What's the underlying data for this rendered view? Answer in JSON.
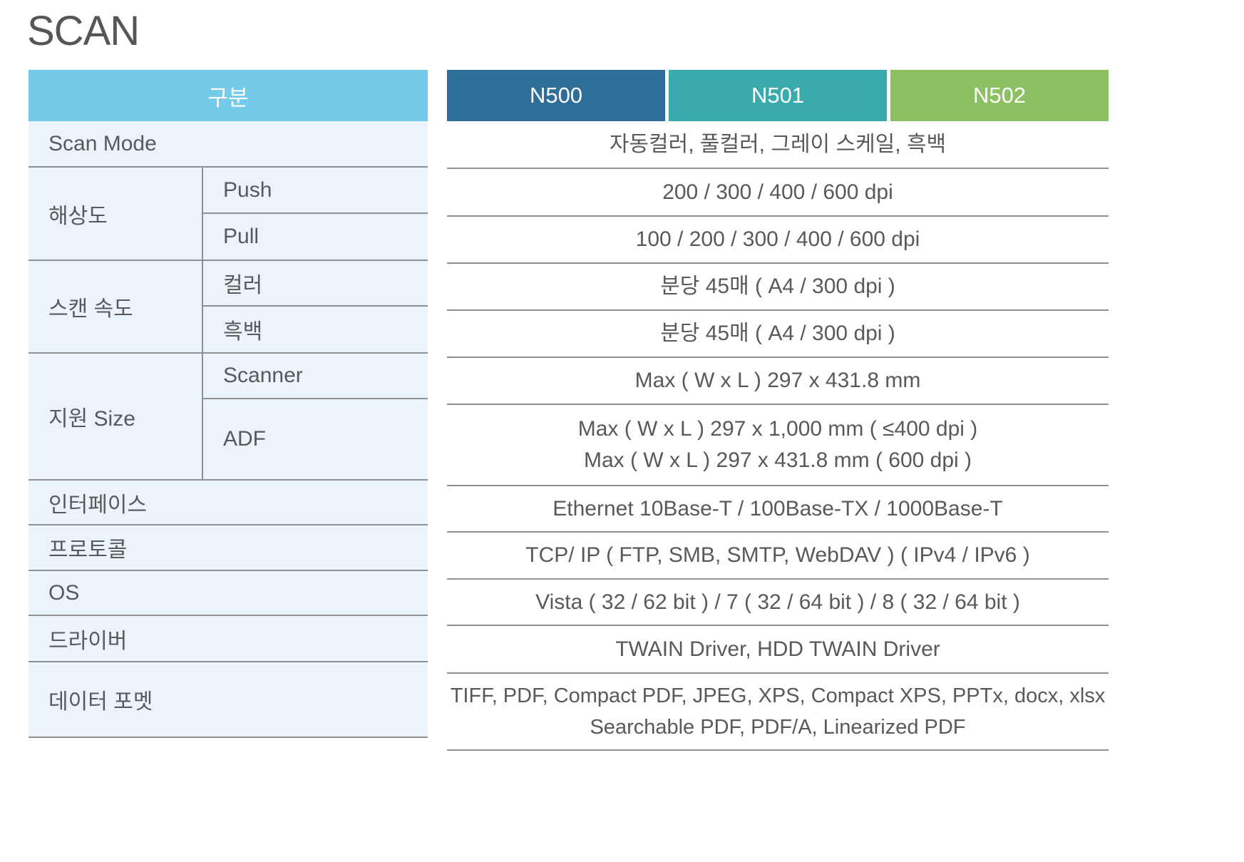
{
  "title": "SCAN",
  "colors": {
    "category_header_bg": "#73CAE9",
    "category_body_bg": "#EAF4FA",
    "n500_bg": "#2E6E99",
    "n501_bg": "#3BAAAD",
    "n502_bg": "#8CC163",
    "text": "#58595B",
    "line": "#8F9091"
  },
  "spec_table": {
    "corner_header": "구분",
    "model_headers": [
      "N500",
      "N501",
      "N502"
    ],
    "rows": [
      {
        "category": "Scan Mode",
        "value": "자동컬러, 풀컬러, 그레이 스케일, 흑백"
      },
      {
        "category": "해상도",
        "sub": "Push",
        "value": "200 / 300 / 400 / 600 dpi"
      },
      {
        "category": "해상도",
        "sub": "Pull",
        "value": "100 / 200 / 300 / 400 / 600 dpi"
      },
      {
        "category": "스캔 속도",
        "sub": "컬러",
        "value": "분당 45매 ( A4 / 300 dpi )"
      },
      {
        "category": "스캔 속도",
        "sub": "흑백",
        "value": "분당 45매 ( A4 / 300 dpi )"
      },
      {
        "category": "지원 Size",
        "sub": "Scanner",
        "value": "Max ( W x L ) 297 x 431.8 mm"
      },
      {
        "category": "지원 Size",
        "sub": "ADF",
        "value_lines": [
          "Max ( W x L ) 297 x 1,000 mm ( ≤400 dpi )",
          "Max ( W x L ) 297 x 431.8 mm ( 600 dpi )"
        ]
      },
      {
        "category": "인터페이스",
        "value": "Ethernet 10Base-T / 100Base-TX / 1000Base-T"
      },
      {
        "category": "프로토콜",
        "value": "TCP/ IP ( FTP, SMB, SMTP, WebDAV ) ( IPv4 / IPv6 )"
      },
      {
        "category": "OS",
        "value": "Vista ( 32 / 62 bit ) / 7 ( 32 / 64 bit ) / 8 ( 32 / 64 bit )"
      },
      {
        "category": "드라이버",
        "value": "TWAIN Driver, HDD TWAIN Driver"
      },
      {
        "category": "데이터 포멧",
        "value_lines": [
          "TIFF, PDF, Compact PDF, JPEG, XPS, Compact XPS, PPTx, docx, xlsx",
          "Searchable PDF, PDF/A, Linearized PDF"
        ]
      }
    ]
  }
}
